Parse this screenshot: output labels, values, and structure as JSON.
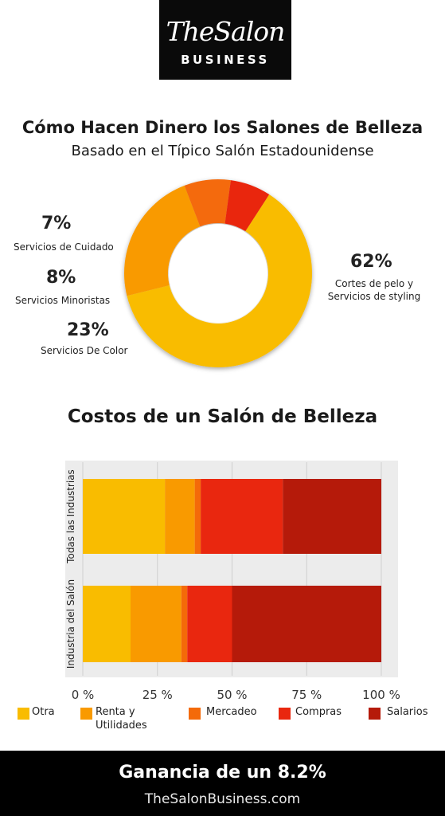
{
  "logo": {
    "script_text": "TheSalon",
    "word": "BUSINESS"
  },
  "revenue": {
    "title": "Cómo Hacen Dinero los Salones de Belleza",
    "subtitle": "Basado en el Típico Salón Estadounidense"
  },
  "costs": {
    "title": "Costos de un Salón de Belleza"
  },
  "colors": {
    "otra": "#F9BC00",
    "renta": "#F99A00",
    "mercadeo": "#F46A09",
    "compras": "#E9270F",
    "salarios": "#B51A0A"
  },
  "chart_data": [
    {
      "type": "pie",
      "title": "Cómo Hacen Dinero los Salones de Belleza",
      "subtitle": "Basado en el Típico Salón Estadounidense",
      "slices": [
        {
          "label": "Cortes de pelo y Servicios de styling",
          "value": 62,
          "pct_text": "62%",
          "color": "#F9BC00"
        },
        {
          "label": "Servicios De Color",
          "value": 23,
          "pct_text": "23%",
          "color": "#F99A00"
        },
        {
          "label": "Servicios Minoristas",
          "value": 8,
          "pct_text": "8%",
          "color": "#F46A09"
        },
        {
          "label": "Servicios de Cuidado",
          "value": 7,
          "pct_text": "7%",
          "color": "#E9270F"
        }
      ]
    },
    {
      "type": "bar",
      "orientation": "horizontal",
      "stacked": true,
      "title": "Costos de un Salón de Belleza",
      "categories": [
        "Todas las Industrias",
        "Industria del Salón"
      ],
      "x_ticks": [
        "0 %",
        "25 %",
        "50 %",
        "75 %",
        "100 %"
      ],
      "xlim": [
        0,
        100
      ],
      "legend_position": "bottom",
      "series": [
        {
          "name": "Otra",
          "values": [
            27.5,
            16
          ],
          "color": "#F9BC00"
        },
        {
          "name": "Renta y Utilidades",
          "values": [
            10,
            17
          ],
          "color": "#F99A00"
        },
        {
          "name": "Mercadeo",
          "values": [
            2,
            2
          ],
          "color": "#F46A09"
        },
        {
          "name": "Compras",
          "values": [
            27.5,
            15
          ],
          "color": "#E9270F"
        },
        {
          "name": "Salarios",
          "values": [
            33,
            50
          ],
          "color": "#B51A0A"
        }
      ]
    }
  ],
  "legend": {
    "otra": "Otra",
    "renta_line1": "Renta y",
    "renta_line2": "Utilidades",
    "mercadeo": "Mercadeo",
    "compras": "Compras",
    "salarios": "Salarios"
  },
  "footer": {
    "headline": "Ganancia de un 8.2%",
    "site": "TheSalonBusiness.com"
  }
}
